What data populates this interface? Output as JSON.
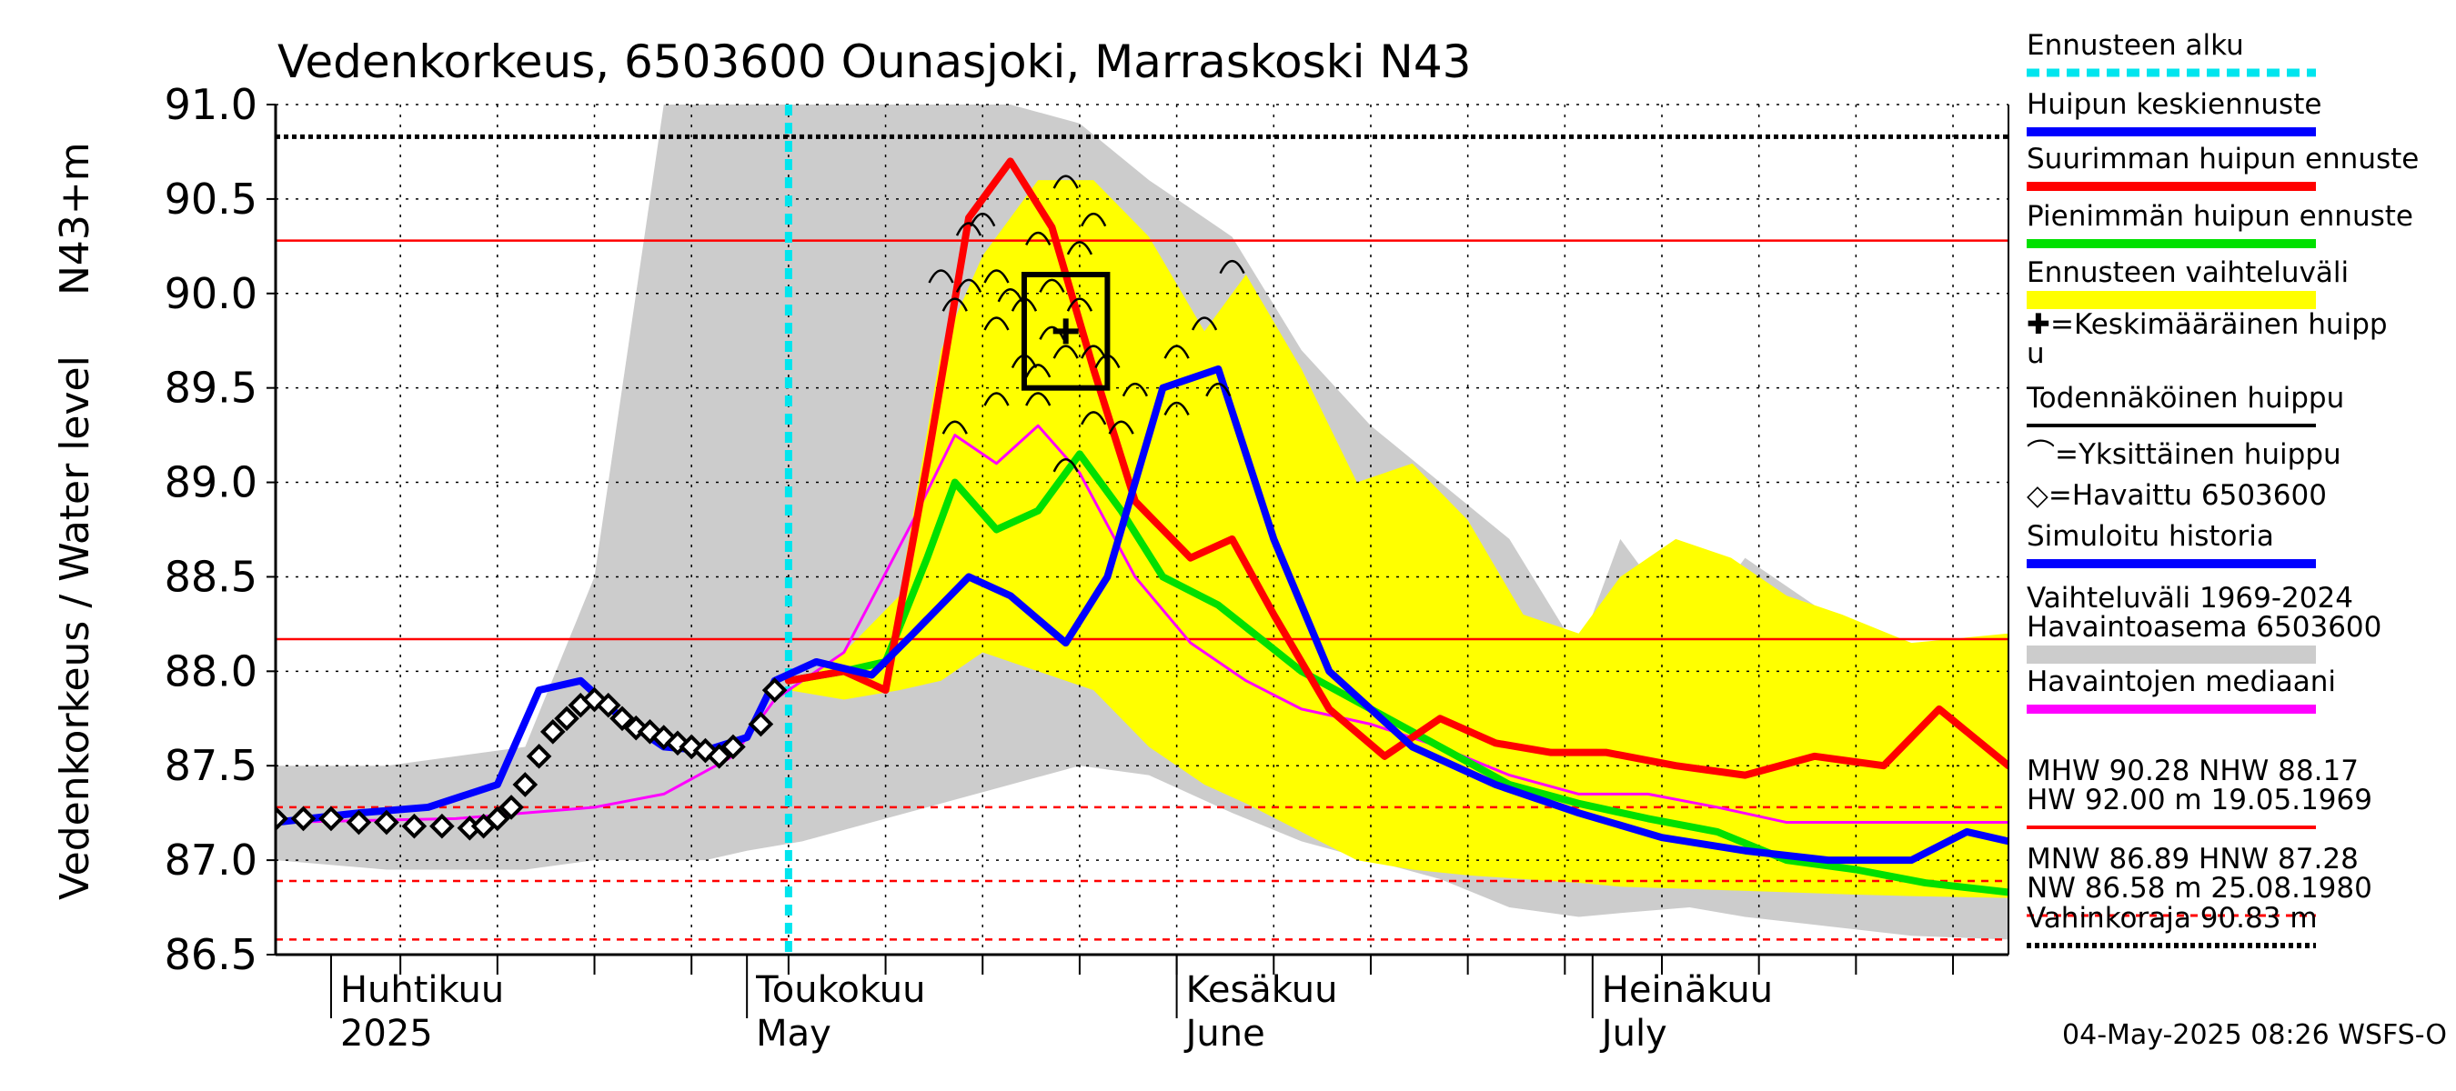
{
  "chart_data": {
    "type": "line",
    "title": "Vedenkorkeus, 6503600 Ounasjoki, Marraskoski N43",
    "ylabel_main": "Vedenkorkeus / Water level",
    "ylabel_unit": "N43+m",
    "ylim": [
      86.5,
      91.0
    ],
    "yticks": [
      "91.0",
      "90.5",
      "90.0",
      "89.5",
      "89.0",
      "88.5",
      "88.0",
      "87.5",
      "87.0",
      "86.5"
    ],
    "grid": true,
    "x_axis": {
      "start": "2025-03-28",
      "end": "2025-07-31",
      "months": [
        {
          "fi": "Huhtikuu",
          "en": "2025",
          "date": "2025-04-01"
        },
        {
          "fi": "Toukokuu",
          "en": "May",
          "date": "2025-05-01"
        },
        {
          "fi": "Kesäkuu",
          "en": "June",
          "date": "2025-06-01"
        },
        {
          "fi": "Heinäkuu",
          "en": "July",
          "date": "2025-07-01"
        }
      ]
    },
    "forecast_start": "2025-05-04",
    "reference_lines": [
      {
        "label": "MHW",
        "value": 90.28,
        "color": "#ff0000",
        "style": "solid"
      },
      {
        "label": "NHW",
        "value": 88.17,
        "color": "#ff0000",
        "style": "solid"
      },
      {
        "label": "HNW",
        "value": 87.28,
        "color": "#ff0000",
        "style": "dashed"
      },
      {
        "label": "MNW",
        "value": 86.89,
        "color": "#ff0000",
        "style": "dashed"
      },
      {
        "label": "NW",
        "value": 86.58,
        "color": "#ff0000",
        "style": "dashed"
      },
      {
        "label": "Vahinkoraja",
        "value": 90.83,
        "color": "#000000",
        "style": "dotted"
      }
    ],
    "band_historical": {
      "name": "Vaihteluväli 1969-2024 Havaintoasema 6503600",
      "color": "#cccccc",
      "x": [
        "2025-03-28",
        "2025-04-05",
        "2025-04-15",
        "2025-04-20",
        "2025-04-25",
        "2025-04-28",
        "2025-05-01",
        "2025-05-05",
        "2025-05-10",
        "2025-05-15",
        "2025-05-20",
        "2025-05-25",
        "2025-05-30",
        "2025-06-05",
        "2025-06-10",
        "2025-06-15",
        "2025-06-20",
        "2025-06-25",
        "2025-06-30",
        "2025-07-03",
        "2025-07-08",
        "2025-07-12",
        "2025-07-18",
        "2025-07-24",
        "2025-07-31"
      ],
      "upper": [
        87.5,
        87.5,
        87.6,
        88.5,
        91.0,
        91.0,
        91.0,
        91.0,
        91.0,
        91.0,
        91.0,
        90.9,
        90.6,
        90.3,
        89.7,
        89.3,
        89.0,
        88.7,
        88.1,
        88.7,
        88.2,
        88.6,
        88.3,
        88.0,
        88.2
      ],
      "lower": [
        87.0,
        86.95,
        86.95,
        87.0,
        87.0,
        87.0,
        87.05,
        87.1,
        87.2,
        87.3,
        87.4,
        87.5,
        87.45,
        87.25,
        87.1,
        87.0,
        86.9,
        86.75,
        86.7,
        86.72,
        86.75,
        86.7,
        86.65,
        86.6,
        86.58
      ]
    },
    "band_forecast": {
      "name": "Ennusteen vaihteluväli",
      "color": "#ffff00",
      "x": [
        "2025-05-04",
        "2025-05-08",
        "2025-05-12",
        "2025-05-15",
        "2025-05-18",
        "2025-05-22",
        "2025-05-26",
        "2025-05-30",
        "2025-06-03",
        "2025-06-06",
        "2025-06-10",
        "2025-06-14",
        "2025-06-18",
        "2025-06-22",
        "2025-06-26",
        "2025-06-30",
        "2025-07-03",
        "2025-07-07",
        "2025-07-11",
        "2025-07-15",
        "2025-07-19",
        "2025-07-24",
        "2025-07-31"
      ],
      "upper": [
        87.9,
        88.1,
        88.4,
        89.7,
        90.2,
        90.6,
        90.6,
        90.3,
        89.8,
        90.1,
        89.6,
        89.0,
        89.1,
        88.8,
        88.3,
        88.2,
        88.5,
        88.7,
        88.6,
        88.4,
        88.3,
        88.15,
        88.2
      ],
      "lower": [
        87.9,
        87.85,
        87.9,
        87.95,
        88.1,
        88.0,
        87.9,
        87.6,
        87.4,
        87.3,
        87.15,
        87.0,
        86.95,
        86.92,
        86.9,
        86.88,
        86.86,
        86.85,
        86.84,
        86.83,
        86.82,
        86.81,
        86.8
      ]
    },
    "series": [
      {
        "name": "Havaintojen mediaani",
        "color": "#ff00ff",
        "width": 3,
        "x": [
          "2025-03-28",
          "2025-04-10",
          "2025-04-20",
          "2025-04-25",
          "2025-04-30",
          "2025-05-03",
          "2025-05-08",
          "2025-05-13",
          "2025-05-16",
          "2025-05-19",
          "2025-05-22",
          "2025-05-25",
          "2025-05-29",
          "2025-06-02",
          "2025-06-06",
          "2025-06-10",
          "2025-06-15",
          "2025-06-20",
          "2025-06-25",
          "2025-06-30",
          "2025-07-05",
          "2025-07-10",
          "2025-07-15",
          "2025-07-20",
          "2025-07-25",
          "2025-07-31"
        ],
        "y": [
          87.2,
          87.22,
          87.28,
          87.35,
          87.55,
          87.85,
          88.1,
          88.8,
          89.25,
          89.1,
          89.3,
          89.05,
          88.5,
          88.15,
          87.95,
          87.8,
          87.72,
          87.6,
          87.45,
          87.35,
          87.35,
          87.28,
          87.2,
          87.2,
          87.2,
          87.2
        ]
      },
      {
        "name": "Pienimmän huipun ennuste",
        "color": "#00e000",
        "width": 8,
        "x": [
          "2025-05-04",
          "2025-05-08",
          "2025-05-11",
          "2025-05-14",
          "2025-05-16",
          "2025-05-19",
          "2025-05-22",
          "2025-05-25",
          "2025-05-28",
          "2025-05-31",
          "2025-06-04",
          "2025-06-10",
          "2025-06-15",
          "2025-06-20",
          "2025-06-25",
          "2025-06-30",
          "2025-07-05",
          "2025-07-10",
          "2025-07-15",
          "2025-07-20",
          "2025-07-25",
          "2025-07-31"
        ],
        "y": [
          87.95,
          88.0,
          88.05,
          88.6,
          89.0,
          88.75,
          88.85,
          89.15,
          88.85,
          88.5,
          88.35,
          88.0,
          87.8,
          87.6,
          87.4,
          87.3,
          87.22,
          87.15,
          87.0,
          86.95,
          86.88,
          86.83
        ]
      },
      {
        "name": "Suurimman huipun ennuste",
        "color": "#ff0000",
        "width": 8,
        "x": [
          "2025-05-04",
          "2025-05-08",
          "2025-05-11",
          "2025-05-14",
          "2025-05-17",
          "2025-05-20",
          "2025-05-23",
          "2025-05-26",
          "2025-05-29",
          "2025-06-02",
          "2025-06-05",
          "2025-06-08",
          "2025-06-12",
          "2025-06-16",
          "2025-06-20",
          "2025-06-24",
          "2025-06-28",
          "2025-07-02",
          "2025-07-07",
          "2025-07-12",
          "2025-07-17",
          "2025-07-22",
          "2025-07-26",
          "2025-07-31"
        ],
        "y": [
          87.95,
          88.0,
          87.9,
          89.1,
          90.4,
          90.7,
          90.35,
          89.6,
          88.9,
          88.6,
          88.7,
          88.3,
          87.8,
          87.55,
          87.75,
          87.62,
          87.57,
          87.57,
          87.5,
          87.45,
          87.55,
          87.5,
          87.8,
          87.5
        ]
      },
      {
        "name": "Huipun keskiennuste",
        "color": "#0000ff",
        "width": 8,
        "x": [
          "2025-03-28",
          "2025-04-03",
          "2025-04-08",
          "2025-04-13",
          "2025-04-16",
          "2025-04-19",
          "2025-04-22",
          "2025-04-25",
          "2025-04-28",
          "2025-05-01",
          "2025-05-03",
          "2025-05-06",
          "2025-05-10",
          "2025-05-13",
          "2025-05-17",
          "2025-05-20",
          "2025-05-24",
          "2025-05-27",
          "2025-05-31",
          "2025-06-04",
          "2025-06-08",
          "2025-06-12",
          "2025-06-18",
          "2025-06-24",
          "2025-06-30",
          "2025-07-06",
          "2025-07-12",
          "2025-07-18",
          "2025-07-24",
          "2025-07-28",
          "2025-07-31"
        ],
        "y": [
          87.2,
          87.25,
          87.28,
          87.4,
          87.9,
          87.95,
          87.75,
          87.6,
          87.58,
          87.65,
          87.95,
          88.05,
          87.98,
          88.2,
          88.5,
          88.4,
          88.15,
          88.5,
          89.5,
          89.6,
          88.7,
          88.0,
          87.6,
          87.4,
          87.25,
          87.12,
          87.05,
          87.0,
          87.0,
          87.15,
          87.1
        ]
      }
    ],
    "observed": {
      "name": "Havaittu 6503600",
      "x": [
        "2025-03-28",
        "2025-03-30",
        "2025-04-01",
        "2025-04-03",
        "2025-04-05",
        "2025-04-07",
        "2025-04-09",
        "2025-04-11",
        "2025-04-12",
        "2025-04-13",
        "2025-04-14",
        "2025-04-15",
        "2025-04-16",
        "2025-04-17",
        "2025-04-18",
        "2025-04-19",
        "2025-04-20",
        "2025-04-21",
        "2025-04-22",
        "2025-04-23",
        "2025-04-24",
        "2025-04-25",
        "2025-04-26",
        "2025-04-27",
        "2025-04-28",
        "2025-04-29",
        "2025-04-30",
        "2025-05-02",
        "2025-05-03"
      ],
      "y": [
        87.22,
        87.22,
        87.22,
        87.2,
        87.2,
        87.18,
        87.18,
        87.17,
        87.18,
        87.22,
        87.28,
        87.4,
        87.55,
        87.68,
        87.75,
        87.82,
        87.85,
        87.82,
        87.75,
        87.7,
        87.68,
        87.65,
        87.62,
        87.6,
        87.58,
        87.55,
        87.6,
        87.72,
        87.9
      ]
    },
    "single_peaks": {
      "name": "Yksittäinen huippu",
      "x": [
        "2025-05-15",
        "2025-05-16",
        "2025-05-17",
        "2025-05-17",
        "2025-05-18",
        "2025-05-19",
        "2025-05-19",
        "2025-05-20",
        "2025-05-21",
        "2025-05-21",
        "2025-05-22",
        "2025-05-22",
        "2025-05-23",
        "2025-05-23",
        "2025-05-24",
        "2025-05-24",
        "2025-05-25",
        "2025-05-25",
        "2025-05-26",
        "2025-05-26",
        "2025-05-27",
        "2025-05-28",
        "2025-06-01",
        "2025-06-03",
        "2025-06-04",
        "2025-06-05",
        "2025-05-16",
        "2025-05-19",
        "2025-05-22",
        "2025-05-24",
        "2025-05-26",
        "2025-05-29",
        "2025-06-01"
      ],
      "y": [
        90.1,
        89.3,
        90.35,
        90.05,
        90.4,
        89.85,
        90.1,
        90.0,
        89.65,
        89.95,
        90.3,
        89.6,
        90.05,
        89.8,
        89.7,
        90.6,
        89.95,
        90.25,
        90.4,
        89.7,
        89.65,
        89.3,
        89.7,
        89.85,
        89.5,
        90.15,
        89.95,
        89.45,
        89.45,
        89.1,
        89.35,
        89.5,
        89.4
      ]
    },
    "mean_peak": {
      "x": "2025-05-24",
      "y": 89.8
    },
    "probable_peak_box": {
      "x0": "2025-05-21",
      "x1": "2025-05-27",
      "y0": 89.5,
      "y1": 90.1
    },
    "legend": [
      {
        "label": "Ennusteen alku",
        "kind": "line-dotted",
        "color": "#00e5ee"
      },
      {
        "label": "Huipun keskiennuste",
        "kind": "line",
        "color": "#0000ff"
      },
      {
        "label": "Suurimman huipun ennuste",
        "kind": "line",
        "color": "#ff0000"
      },
      {
        "label": "Pienimmän huipun ennuste",
        "kind": "line",
        "color": "#00e000"
      },
      {
        "label": "Ennusteen vaihteluväli",
        "kind": "bar",
        "color": "#ffff00"
      },
      {
        "label": "✚=Keskimääräinen huipp",
        "label2": "u",
        "kind": "text"
      },
      {
        "label": "Todennäköinen huippu",
        "kind": "line",
        "color": "#000000"
      },
      {
        "label": "⌒=Yksittäinen huippu",
        "kind": "text"
      },
      {
        "label": "◇=Havaittu 6503600",
        "kind": "text"
      },
      {
        "label": "Simuloitu historia",
        "kind": "line",
        "color": "#0000ff"
      },
      {
        "label": "Vaihteluväli 1969-2024",
        "label2": " Havaintoasema 6503600",
        "kind": "bar",
        "color": "#cccccc"
      },
      {
        "label": "Havaintojen mediaani",
        "kind": "line",
        "color": "#ff00ff"
      },
      {
        "label": "MHW  90.28 NHW  88.17",
        "label2": "HW  92.00 m 19.05.1969",
        "kind": "line",
        "color": "#ff0000"
      },
      {
        "label": "MNW  86.89 HNW  87.28",
        "label2": "NW  86.58 m 25.08.1980",
        "kind": "line-dashed",
        "color": "#ff0000"
      },
      {
        "label": "Vahinkoraja 90.83 m",
        "kind": "line-dotted",
        "color": "#000000"
      }
    ],
    "timestamp": "04-May-2025 08:26 WSFS-O"
  }
}
